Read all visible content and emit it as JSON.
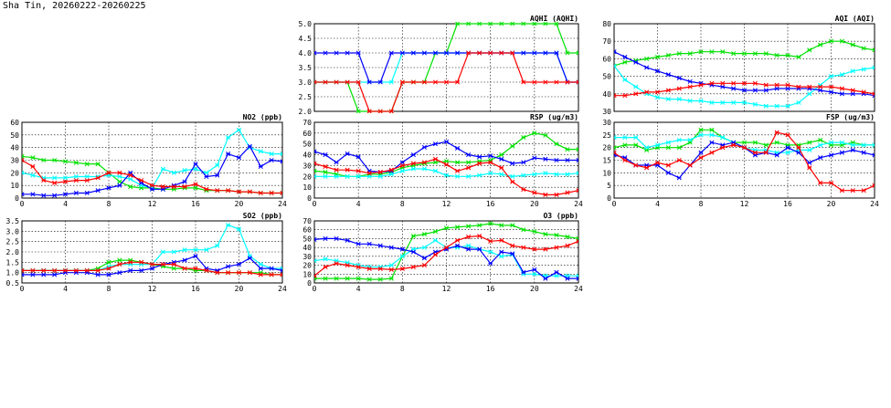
{
  "page_title": "Sha Tin, 20260222-20260225",
  "series_colors": [
    "#00e000",
    "#00ffff",
    "#0000ff",
    "#ff0000"
  ],
  "chart_data": [
    {
      "id": "aqhi",
      "type": "line",
      "title": "AQHI (AQHI)",
      "xlim": [
        0,
        24
      ],
      "xticks": [
        "0",
        "4",
        "8",
        "12",
        "16",
        "20",
        "24"
      ],
      "ylim": [
        2.0,
        5.0
      ],
      "yticks": [
        "2.0",
        "2.5",
        "3.0",
        "3.5",
        "4.0",
        "4.5",
        "5.0"
      ],
      "grid": true,
      "x": [
        0,
        1,
        2,
        3,
        4,
        5,
        6,
        7,
        8,
        9,
        10,
        11,
        12,
        13,
        14,
        15,
        16,
        17,
        18,
        19,
        20,
        21,
        22,
        23,
        24
      ],
      "series": [
        {
          "values": [
            3,
            3,
            3,
            3,
            2,
            2,
            2,
            2,
            3,
            3,
            3,
            4,
            4,
            5,
            5,
            5,
            5,
            5,
            5,
            5,
            5,
            5,
            5,
            4,
            4
          ]
        },
        {
          "values": [
            3,
            3,
            3,
            3,
            3,
            3,
            3,
            3,
            4,
            4,
            4,
            4,
            4,
            4,
            4,
            4,
            4,
            4,
            4,
            4,
            4,
            4,
            4,
            3,
            3
          ]
        },
        {
          "values": [
            4,
            4,
            4,
            4,
            4,
            3,
            3,
            4,
            4,
            4,
            4,
            4,
            4,
            4,
            4,
            4,
            4,
            4,
            4,
            4,
            4,
            4,
            4,
            3,
            3
          ]
        },
        {
          "values": [
            3,
            3,
            3,
            3,
            3,
            2,
            2,
            2,
            3,
            3,
            3,
            3,
            3,
            3,
            4,
            4,
            4,
            4,
            4,
            3,
            3,
            3,
            3,
            3,
            3
          ]
        }
      ]
    },
    {
      "id": "aqi",
      "type": "line",
      "title": "AQI (AQI)",
      "xlim": [
        0,
        24
      ],
      "xticks": [
        "0",
        "4",
        "8",
        "12",
        "16",
        "20",
        "24"
      ],
      "ylim": [
        30,
        80
      ],
      "yticks": [
        "30",
        "40",
        "50",
        "60",
        "70",
        "80"
      ],
      "grid": true,
      "x": [
        0,
        1,
        2,
        3,
        4,
        5,
        6,
        7,
        8,
        9,
        10,
        11,
        12,
        13,
        14,
        15,
        16,
        17,
        18,
        19,
        20,
        21,
        22,
        23,
        24
      ],
      "series": [
        {
          "values": [
            56,
            58,
            59,
            60,
            61,
            62,
            63,
            63,
            64,
            64,
            64,
            63,
            63,
            63,
            63,
            62,
            62,
            61,
            65,
            68,
            70,
            70,
            68,
            66,
            65
          ]
        },
        {
          "values": [
            56,
            48,
            44,
            40,
            38,
            37,
            37,
            36,
            36,
            35,
            35,
            35,
            35,
            34,
            33,
            33,
            33,
            35,
            40,
            45,
            50,
            51,
            53,
            54,
            55
          ]
        },
        {
          "values": [
            64,
            61,
            58,
            55,
            53,
            51,
            49,
            47,
            46,
            45,
            44,
            43,
            42,
            42,
            42,
            43,
            43,
            43,
            43,
            42,
            41,
            40,
            40,
            40,
            39
          ]
        },
        {
          "values": [
            39,
            39,
            40,
            41,
            41,
            42,
            43,
            44,
            45,
            46,
            46,
            46,
            46,
            46,
            45,
            45,
            45,
            44,
            44,
            44,
            44,
            43,
            42,
            41,
            40
          ]
        }
      ]
    },
    {
      "id": "no2",
      "type": "line",
      "title": "NO2 (ppb)",
      "xlim": [
        0,
        24
      ],
      "xticks": [
        "0",
        "4",
        "8",
        "12",
        "16",
        "20",
        "24"
      ],
      "ylim": [
        0,
        60
      ],
      "yticks": [
        "0",
        "10",
        "20",
        "30",
        "40",
        "50",
        "60"
      ],
      "grid": true,
      "x": [
        0,
        1,
        2,
        3,
        4,
        5,
        6,
        7,
        8,
        9,
        10,
        11,
        12,
        13,
        14,
        15,
        16,
        17,
        18,
        19,
        20,
        21,
        22,
        23,
        24
      ],
      "series": [
        {
          "values": [
            33,
            32,
            30,
            30,
            29,
            28,
            27,
            27,
            20,
            13,
            9,
            8,
            8,
            7,
            7,
            8,
            8,
            6,
            6,
            6,
            5,
            5,
            4,
            4,
            4
          ]
        },
        {
          "values": [
            20,
            18,
            16,
            16,
            16,
            17,
            17,
            17,
            18,
            17,
            15,
            10,
            8,
            23,
            20,
            22,
            23,
            20,
            26,
            48,
            54,
            40,
            37,
            35,
            35
          ]
        },
        {
          "values": [
            3,
            3,
            2,
            2,
            3,
            4,
            4,
            6,
            8,
            10,
            20,
            12,
            7,
            7,
            10,
            13,
            27,
            17,
            18,
            35,
            32,
            41,
            25,
            30,
            29
          ]
        },
        {
          "values": [
            30,
            25,
            14,
            12,
            13,
            14,
            14,
            16,
            20,
            20,
            18,
            14,
            10,
            9,
            9,
            9,
            11,
            7,
            6,
            6,
            5,
            5,
            4,
            4,
            4
          ]
        }
      ]
    },
    {
      "id": "rsp",
      "type": "line",
      "title": "RSP (ug/m3)",
      "xlim": [
        0,
        24
      ],
      "xticks": [
        "0",
        "4",
        "8",
        "12",
        "16",
        "20",
        "24"
      ],
      "ylim": [
        0,
        70
      ],
      "yticks": [
        "0",
        "10",
        "20",
        "30",
        "40",
        "50",
        "60",
        "70"
      ],
      "grid": true,
      "x": [
        0,
        1,
        2,
        3,
        4,
        5,
        6,
        7,
        8,
        9,
        10,
        11,
        12,
        13,
        14,
        15,
        16,
        17,
        18,
        19,
        20,
        21,
        22,
        23,
        24
      ],
      "series": [
        {
          "values": [
            25,
            24,
            22,
            20,
            20,
            22,
            22,
            24,
            28,
            30,
            32,
            33,
            34,
            33,
            33,
            34,
            35,
            40,
            48,
            56,
            60,
            58,
            50,
            45,
            45
          ]
        },
        {
          "values": [
            20,
            20,
            20,
            20,
            20,
            20,
            20,
            22,
            25,
            27,
            27,
            25,
            21,
            20,
            20,
            21,
            23,
            22,
            20,
            21,
            22,
            23,
            22,
            22,
            23
          ]
        },
        {
          "values": [
            43,
            40,
            33,
            41,
            38,
            25,
            24,
            25,
            33,
            40,
            47,
            50,
            52,
            46,
            40,
            38,
            39,
            36,
            32,
            33,
            37,
            36,
            35,
            35,
            35
          ]
        },
        {
          "values": [
            32,
            29,
            26,
            26,
            25,
            23,
            24,
            26,
            30,
            32,
            33,
            36,
            31,
            25,
            28,
            32,
            33,
            28,
            15,
            8,
            5,
            3,
            3,
            5,
            7
          ]
        }
      ]
    },
    {
      "id": "fsp",
      "type": "line",
      "title": "FSP (ug/m3)",
      "xlim": [
        0,
        24
      ],
      "xticks": [
        "0",
        "4",
        "8",
        "12",
        "16",
        "20",
        "24"
      ],
      "ylim": [
        0,
        30
      ],
      "yticks": [
        "0",
        "5",
        "10",
        "15",
        "20",
        "25",
        "30"
      ],
      "grid": true,
      "x": [
        0,
        1,
        2,
        3,
        4,
        5,
        6,
        7,
        8,
        9,
        10,
        11,
        12,
        13,
        14,
        15,
        16,
        17,
        18,
        19,
        20,
        21,
        22,
        23,
        24
      ],
      "series": [
        {
          "values": [
            20,
            21,
            21,
            19,
            20,
            20,
            20,
            22,
            27,
            27,
            24,
            22,
            22,
            22,
            21,
            22,
            21,
            21,
            22,
            23,
            21,
            21,
            22,
            21,
            21
          ]
        },
        {
          "values": [
            24,
            24,
            24,
            20,
            21,
            22,
            23,
            23,
            25,
            25,
            24,
            22,
            20,
            19,
            19,
            18,
            18,
            19,
            19,
            21,
            22,
            22,
            21,
            21,
            21
          ]
        },
        {
          "values": [
            17,
            16,
            13,
            13,
            13,
            10,
            8,
            13,
            18,
            22,
            21,
            22,
            20,
            17,
            18,
            17,
            20,
            18,
            14,
            16,
            17,
            18,
            19,
            18,
            17
          ]
        },
        {
          "values": [
            18,
            15,
            13,
            12,
            14,
            13,
            15,
            13,
            16,
            18,
            20,
            21,
            20,
            18,
            18,
            26,
            25,
            20,
            12,
            6,
            6,
            3,
            3,
            3,
            5
          ]
        }
      ]
    },
    {
      "id": "so2",
      "type": "line",
      "title": "SO2 (ppb)",
      "xlim": [
        0,
        24
      ],
      "xticks": [
        "0",
        "4",
        "8",
        "12",
        "16",
        "20",
        "24"
      ],
      "ylim": [
        0.5,
        3.5
      ],
      "yticks": [
        "0.5",
        "1.0",
        "1.5",
        "2.0",
        "2.5",
        "3.0",
        "3.5"
      ],
      "grid": true,
      "x": [
        0,
        1,
        2,
        3,
        4,
        5,
        6,
        7,
        8,
        9,
        10,
        11,
        12,
        13,
        14,
        15,
        16,
        17,
        18,
        19,
        20,
        21,
        22,
        23,
        24
      ],
      "series": [
        {
          "values": [
            1.1,
            1.1,
            1.1,
            1.1,
            1.1,
            1.1,
            1.1,
            1.2,
            1.5,
            1.6,
            1.6,
            1.5,
            1.4,
            1.3,
            1.2,
            1.2,
            1.1,
            1.1,
            1.0,
            1.0,
            1.0,
            1.0,
            1.0,
            0.9,
            0.9
          ]
        },
        {
          "values": [
            1.1,
            1.1,
            1.1,
            1.1,
            1.1,
            1.1,
            1.1,
            1.1,
            1.3,
            1.4,
            1.4,
            1.4,
            1.4,
            2.0,
            2.0,
            2.1,
            2.1,
            2.1,
            2.3,
            3.3,
            3.1,
            1.8,
            1.4,
            1.2,
            1.2
          ]
        },
        {
          "values": [
            0.9,
            0.9,
            0.9,
            0.9,
            1.0,
            1.0,
            1.0,
            0.9,
            0.9,
            1.0,
            1.1,
            1.1,
            1.2,
            1.4,
            1.5,
            1.6,
            1.8,
            1.2,
            1.1,
            1.3,
            1.4,
            1.7,
            1.2,
            1.2,
            1.1
          ]
        },
        {
          "values": [
            1.1,
            1.1,
            1.1,
            1.1,
            1.1,
            1.1,
            1.1,
            1.1,
            1.2,
            1.4,
            1.5,
            1.5,
            1.4,
            1.4,
            1.4,
            1.2,
            1.2,
            1.1,
            1.0,
            1.0,
            1.0,
            1.0,
            0.9,
            0.9,
            0.9
          ]
        }
      ]
    },
    {
      "id": "o3",
      "type": "line",
      "title": "O3 (ppb)",
      "xlim": [
        0,
        24
      ],
      "xticks": [
        "0",
        "4",
        "8",
        "12",
        "16",
        "20",
        "24"
      ],
      "ylim": [
        0,
        70
      ],
      "yticks": [
        "0",
        "10",
        "20",
        "30",
        "40",
        "50",
        "60",
        "70"
      ],
      "grid": true,
      "x": [
        0,
        1,
        2,
        3,
        4,
        5,
        6,
        7,
        8,
        9,
        10,
        11,
        12,
        13,
        14,
        15,
        16,
        17,
        18,
        19,
        20,
        21,
        22,
        23,
        24
      ],
      "series": [
        {
          "values": [
            5,
            5,
            5,
            5,
            5,
            4,
            4,
            5,
            30,
            53,
            55,
            58,
            62,
            63,
            64,
            65,
            67,
            65,
            65,
            60,
            58,
            55,
            54,
            52,
            50
          ]
        },
        {
          "values": [
            25,
            27,
            25,
            23,
            20,
            18,
            18,
            20,
            30,
            38,
            40,
            48,
            40,
            40,
            42,
            38,
            35,
            30,
            32,
            10,
            10,
            8,
            8,
            8,
            8
          ]
        },
        {
          "values": [
            49,
            50,
            50,
            48,
            44,
            44,
            42,
            40,
            38,
            35,
            28,
            35,
            38,
            42,
            38,
            38,
            22,
            35,
            33,
            12,
            15,
            5,
            12,
            5,
            5
          ]
        },
        {
          "values": [
            8,
            18,
            22,
            20,
            18,
            16,
            16,
            15,
            16,
            18,
            20,
            32,
            40,
            48,
            52,
            53,
            47,
            48,
            42,
            40,
            38,
            38,
            40,
            42,
            47
          ]
        }
      ]
    }
  ]
}
